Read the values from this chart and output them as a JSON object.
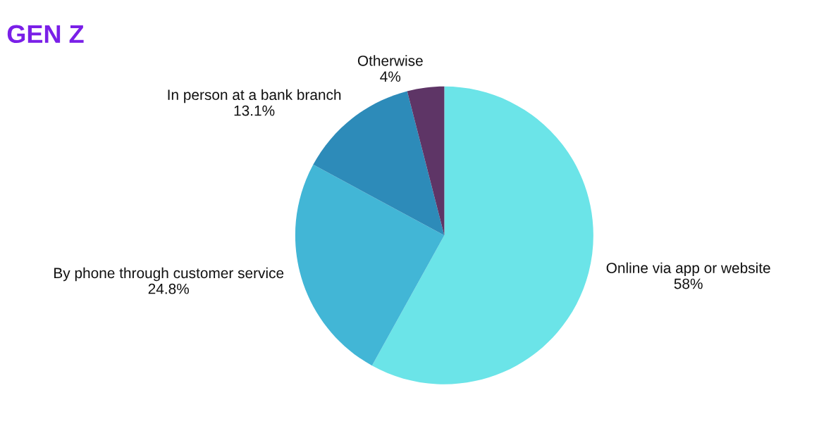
{
  "chart_data": {
    "type": "pie",
    "title": "GEN Z",
    "categories": [
      "Online via app or website",
      "By phone through customer service",
      "In person at a bank branch",
      "Otherwise"
    ],
    "values": [
      58,
      24.8,
      13.1,
      4
    ],
    "value_labels": [
      "58%",
      "24.8%",
      "13.1%",
      "4%"
    ],
    "colors": [
      "#6be4e8",
      "#42b6d6",
      "#2d8bb9",
      "#5e3566"
    ]
  }
}
